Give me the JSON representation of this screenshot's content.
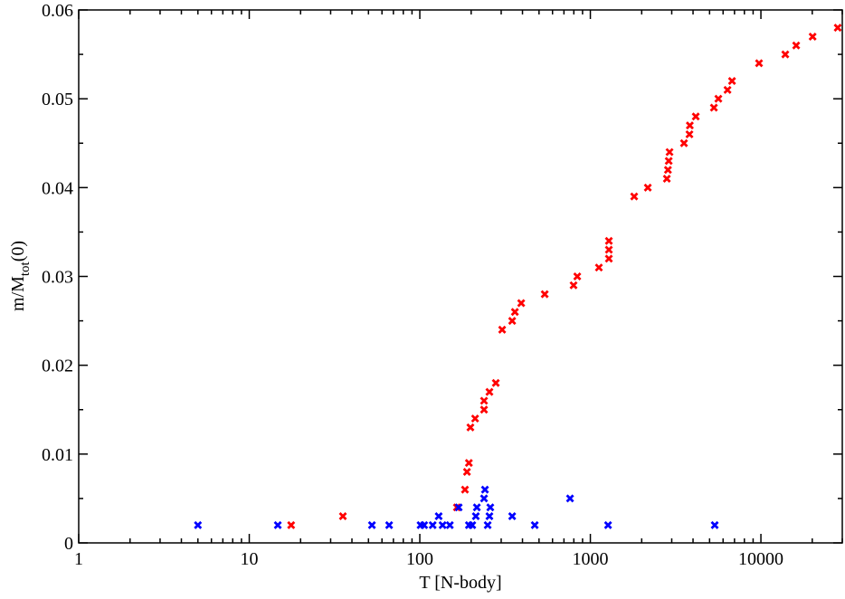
{
  "chart_data": {
    "type": "scatter",
    "xlabel": "T [N-body]",
    "ylabel": {
      "main": "m/M",
      "sub": "tot",
      "tail": "(0)"
    },
    "xscale": "log",
    "xlim": [
      1,
      30000
    ],
    "xticks": [
      1,
      10,
      100,
      1000,
      10000
    ],
    "ylim": [
      0,
      0.06
    ],
    "yticks": [
      0,
      0.01,
      0.02,
      0.03,
      0.04,
      0.05,
      0.06
    ],
    "grid": false,
    "series": [
      {
        "color": "#ff0000",
        "x": [
          17.6,
          35.4,
          165,
          184,
          189,
          194,
          198,
          211,
          238,
          238,
          256,
          279,
          304,
          348,
          361,
          393,
          540,
          797,
          838,
          1122,
          1284,
          1284,
          1284,
          1807,
          2172,
          2808,
          2850,
          2880,
          2912,
          3540,
          3811,
          3830,
          4150,
          5300,
          5630,
          6370,
          6770,
          9750,
          13900,
          16100,
          20100,
          28200
        ],
        "values": [
          0.002,
          0.003,
          0.004,
          0.006,
          0.008,
          0.009,
          0.013,
          0.014,
          0.016,
          0.015,
          0.017,
          0.018,
          0.024,
          0.025,
          0.026,
          0.027,
          0.028,
          0.029,
          0.03,
          0.031,
          0.032,
          0.033,
          0.034,
          0.039,
          0.04,
          0.041,
          0.042,
          0.043,
          0.044,
          0.045,
          0.046,
          0.047,
          0.048,
          0.049,
          0.05,
          0.051,
          0.052,
          0.054,
          0.055,
          0.056,
          0.057,
          0.058
        ]
      },
      {
        "color": "#0000ff",
        "x": [
          5.0,
          14.7,
          52.4,
          66.1,
          101,
          106,
          119,
          129,
          136,
          150,
          169,
          194,
          203,
          213,
          216,
          238,
          241,
          250,
          256,
          259,
          348,
          472,
          760,
          1270,
          5360
        ],
        "values": [
          0.002,
          0.002,
          0.002,
          0.002,
          0.002,
          0.002,
          0.002,
          0.003,
          0.002,
          0.002,
          0.004,
          0.002,
          0.002,
          0.003,
          0.004,
          0.005,
          0.006,
          0.002,
          0.003,
          0.004,
          0.003,
          0.002,
          0.005,
          0.002,
          0.002
        ]
      }
    ]
  }
}
